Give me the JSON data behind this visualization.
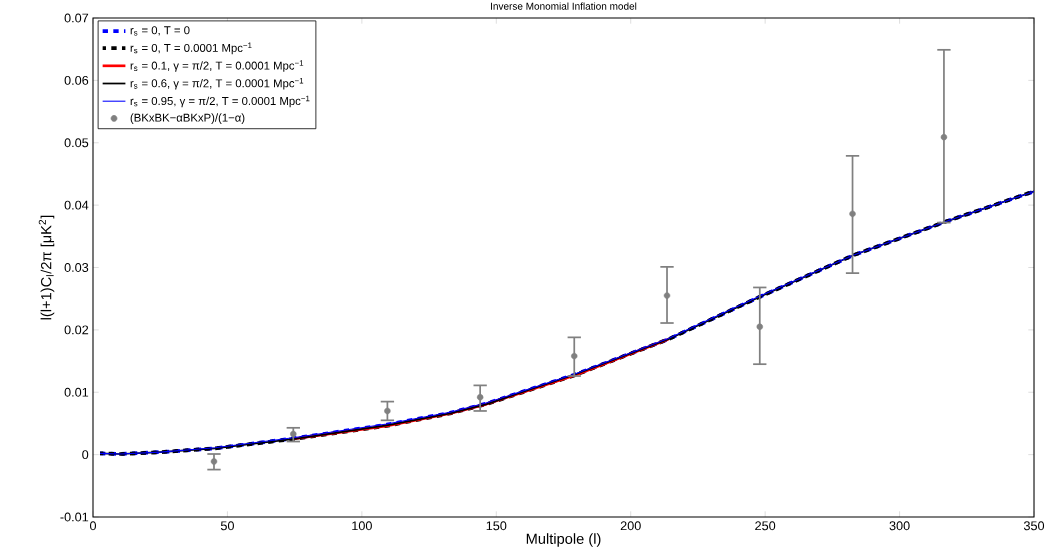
{
  "chart_data": {
    "type": "line",
    "title": "Inverse Monomial Inflation model",
    "xlabel": "Multipole (l)",
    "ylabel": "l(l+1)C$_{l}$/2π [μK$^{2}$]",
    "xlim": [
      0,
      350
    ],
    "ylim": [
      -0.01,
      0.07
    ],
    "xticks": [
      0,
      50,
      100,
      150,
      200,
      250,
      300,
      350
    ],
    "yticks": [
      -0.01,
      0,
      0.01,
      0.02,
      0.03,
      0.04,
      0.05,
      0.06,
      0.07
    ],
    "grid": false,
    "legend": "top left",
    "marker": "none",
    "series": [
      {
        "name": "r$_{s}$ = 0, T = 0",
        "color": "#0000ff",
        "line_style": "dashed",
        "x": [
          2.6,
          10,
          25,
          45.4,
          74.4,
          109.2,
          132.8,
          146.4,
          179,
          214,
          248.5,
          283,
          317.5,
          350
        ],
        "values": [
          0.0002,
          0.0001,
          0.0004,
          0.001,
          0.0026,
          0.0048,
          0.0067,
          0.0082,
          0.0128,
          0.0185,
          0.0254,
          0.032,
          0.0374,
          0.0422
        ]
      },
      {
        "name": "r$_{s}$ = 0, T = 0.0001 Mpc$^{−1}$",
        "color": "#000000",
        "line_style": "dashed",
        "x": [
          2.6,
          10,
          25,
          45.4,
          74.4,
          109.2,
          132.8,
          146.4,
          179,
          214,
          248.5,
          283,
          317.5,
          350
        ],
        "values": [
          0.0002,
          0.0001,
          0.0004,
          0.001,
          0.0025,
          0.0046,
          0.0066,
          0.0081,
          0.0127,
          0.0185,
          0.0254,
          0.032,
          0.0374,
          0.0422
        ]
      },
      {
        "name": "r$_{s}$ = 0.1, γ = π/2, T = 0.0001 Mpc$^{−1}$",
        "color": "#ff0000",
        "line_style": "solid",
        "x": [
          74.4,
          109.2,
          132.8,
          146.4,
          179,
          214
        ],
        "values": [
          0.0025,
          0.0046,
          0.0066,
          0.0081,
          0.0127,
          0.0185
        ]
      },
      {
        "name": "r$_{s}$ = 0.6, γ = π/2, T = 0.0001 Mpc$^{−1}$",
        "color": "#000000",
        "line_style": "solid",
        "x": [
          2.6,
          10,
          25,
          45.4,
          74.4,
          109.2,
          132.8,
          146.4,
          179,
          214,
          248.5,
          283,
          317.5,
          350
        ],
        "values": [
          0.0002,
          0.0001,
          0.0004,
          0.001,
          0.0025,
          0.0047,
          0.0066,
          0.0081,
          0.0128,
          0.0185,
          0.0254,
          0.032,
          0.0374,
          0.0422
        ]
      },
      {
        "name": "r$_{s}$ = 0.95, γ = π/2, T = 0.0001 Mpc$^{−1}$",
        "color": "#0000ff",
        "line_style": "solid",
        "x": [
          2.6,
          10,
          25,
          45.4,
          74.4,
          109.2,
          132.8,
          146.4,
          179,
          214,
          248.5,
          283,
          317.5,
          350
        ],
        "values": [
          0.0002,
          0.0001,
          0.0004,
          0.0011,
          0.0027,
          0.0049,
          0.0068,
          0.0083,
          0.0129,
          0.0186,
          0.0255,
          0.032,
          0.0374,
          0.0422
        ]
      },
      {
        "name": "(BKxBK−αBKxP)/(1−α)",
        "type": "scatter",
        "marker": "circle",
        "color": "#808080",
        "x": [
          45,
          74.5,
          109.5,
          144,
          179,
          213.5,
          248,
          282.5,
          316.5
        ],
        "values": [
          -0.0011,
          0.0033,
          0.007,
          0.0092,
          0.0158,
          0.0255,
          0.0205,
          0.0386,
          0.0509
        ],
        "errors": [
          [
            -0.0024,
            0.0001
          ],
          [
            0.0021,
            0.0043
          ],
          [
            0.0055,
            0.0085
          ],
          [
            0.007,
            0.0111
          ],
          [
            0.0126,
            0.0188
          ],
          [
            0.0211,
            0.0301
          ],
          [
            0.0145,
            0.0268
          ],
          [
            0.0291,
            0.0479
          ],
          [
            0.0372,
            0.0649
          ]
        ]
      }
    ]
  }
}
